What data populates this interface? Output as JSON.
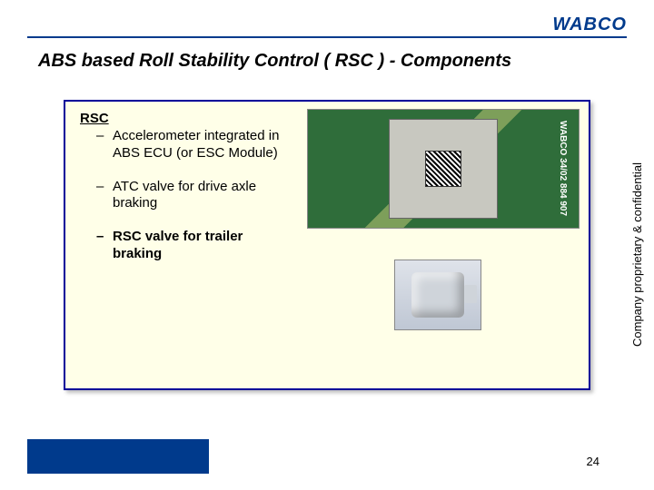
{
  "brand": {
    "logo_text": "WABCO",
    "logo_color": "#003a8c"
  },
  "slide": {
    "title": "ABS based Roll  Stability Control ( RSC ) - Components",
    "page_number": "24"
  },
  "content": {
    "heading": "RSC",
    "bullets": [
      {
        "text": "Accelerometer integrated in ABS ECU (or ESC Module)",
        "bold": false
      },
      {
        "text": "ATC valve for drive axle braking",
        "bold": false
      },
      {
        "text": "RSC valve for trailer braking",
        "bold": true
      }
    ]
  },
  "sidebar_text": "Company proprietary & confidential",
  "images": {
    "accelerometer": {
      "label": "accelerometer-chip-photo",
      "side_text": "WABCO 34/02  884 907"
    },
    "valve": {
      "label": "atc-valve-photo"
    }
  },
  "colors": {
    "box_border": "#000099",
    "box_bg": "#ffffe8",
    "brand": "#003a8c"
  }
}
